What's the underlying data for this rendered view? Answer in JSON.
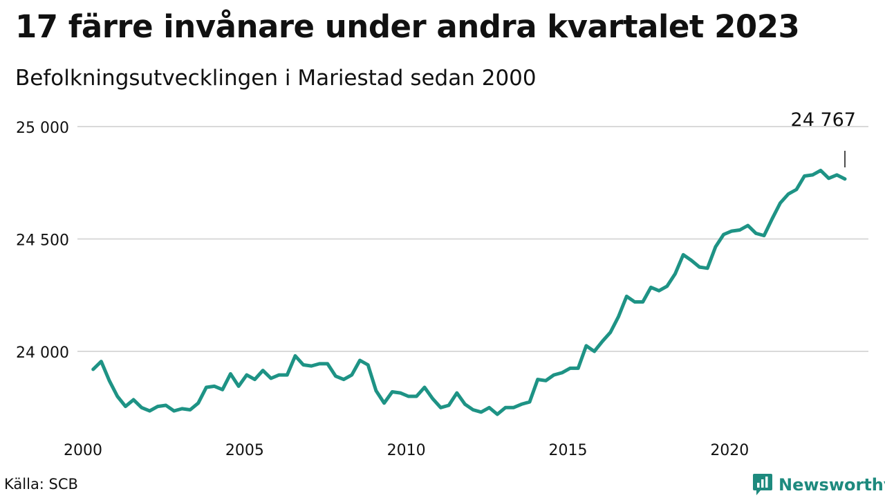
{
  "title": "17 färre invånare under andra kvartalet 2023",
  "subtitle": "Befolkningsutvecklingen i Mariestad sedan 2000",
  "source": "Källa: SCB",
  "brand": "Newsworthy",
  "colors": {
    "line": "#1e9385",
    "grid": "#d9d9d9",
    "brand": "#1e8a7e"
  },
  "chart_data": {
    "type": "line",
    "title": "17 färre invånare under andra kvartalet 2023",
    "subtitle": "Befolkningsutvecklingen i Mariestad sedan 2000",
    "xlabel": "",
    "ylabel": "",
    "xlim": [
      2000,
      2023.5
    ],
    "ylim": [
      23700,
      25000
    ],
    "yticks": [
      24000,
      24500,
      25000
    ],
    "ytick_labels": [
      "24 000",
      "24 500",
      "25 000"
    ],
    "xticks": [
      2000,
      2005,
      2010,
      2015,
      2020
    ],
    "xtick_labels": [
      "2000",
      "2005",
      "2010",
      "2015",
      "2020"
    ],
    "grid": true,
    "last_value_label": "24 767",
    "x": [
      2000.25,
      2000.5,
      2000.75,
      2001,
      2001.25,
      2001.5,
      2001.75,
      2002,
      2002.25,
      2002.5,
      2002.75,
      2003,
      2003.25,
      2003.5,
      2003.75,
      2004,
      2004.25,
      2004.5,
      2004.75,
      2005,
      2005.25,
      2005.5,
      2005.75,
      2006,
      2006.25,
      2006.5,
      2006.75,
      2007,
      2007.25,
      2007.5,
      2007.75,
      2008,
      2008.25,
      2008.5,
      2008.75,
      2009,
      2009.25,
      2009.5,
      2009.75,
      2010,
      2010.25,
      2010.5,
      2010.75,
      2011,
      2011.25,
      2011.5,
      2011.75,
      2012,
      2012.25,
      2012.5,
      2012.75,
      2013,
      2013.25,
      2013.5,
      2013.75,
      2014,
      2014.25,
      2014.5,
      2014.75,
      2015,
      2015.25,
      2015.5,
      2015.75,
      2016,
      2016.25,
      2016.5,
      2016.75,
      2017,
      2017.25,
      2017.5,
      2017.75,
      2018,
      2018.25,
      2018.5,
      2018.75,
      2019,
      2019.25,
      2019.5,
      2019.75,
      2020,
      2020.25,
      2020.5,
      2020.75,
      2021,
      2021.25,
      2021.5,
      2021.75,
      2022,
      2022.25,
      2022.5,
      2022.75,
      2023,
      2023.25,
      2023.5
    ],
    "series": [
      {
        "values": [
          23920,
          23955,
          23870,
          23800,
          23755,
          23785,
          23750,
          23735,
          23755,
          23760,
          23735,
          23745,
          23740,
          23770,
          23840,
          23845,
          23830,
          23900,
          23845,
          23895,
          23875,
          23915,
          23880,
          23895,
          23895,
          23980,
          23940,
          23935,
          23945,
          23945,
          23890,
          23875,
          23895,
          23960,
          23940,
          23825,
          23770,
          23820,
          23815,
          23800,
          23800,
          23840,
          23790,
          23750,
          23760,
          23815,
          23765,
          23740,
          23730,
          23750,
          23720,
          23750,
          23750,
          23765,
          23775,
          23875,
          23870,
          23895,
          23905,
          23925,
          23925,
          24025,
          24000,
          24045,
          24085,
          24155,
          24245,
          24220,
          24220,
          24285,
          24270,
          24290,
          24345,
          24430,
          24405,
          24375,
          24370,
          24465,
          24520,
          24535,
          24540,
          24560,
          24525,
          24515,
          24590,
          24660,
          24700,
          24720,
          24780,
          24785,
          24805,
          24770,
          24785,
          24767
        ]
      }
    ]
  }
}
